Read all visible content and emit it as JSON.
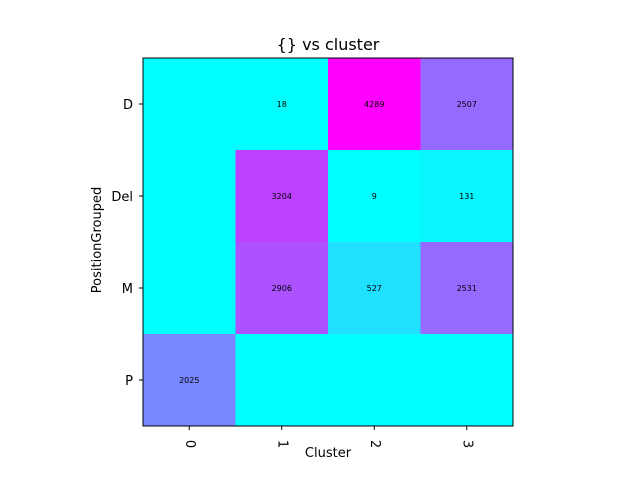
{
  "chart_data": {
    "type": "heatmap",
    "title": "{} vs cluster",
    "xlabel": "Cluster",
    "ylabel": "PositionGrouped",
    "x_categories": [
      "0",
      "1",
      "2",
      "3"
    ],
    "y_categories": [
      "D",
      "Del",
      "M",
      "P"
    ],
    "values": [
      [
        null,
        18,
        4289,
        2507
      ],
      [
        null,
        3204,
        9,
        131
      ],
      [
        null,
        2906,
        527,
        2531
      ],
      [
        2025,
        null,
        null,
        null
      ]
    ],
    "colormap": "cool",
    "colors": {
      "empty": "#00ffff",
      "low": "#00ffff",
      "high": "#ff00ff"
    },
    "value_range": [
      0,
      4289
    ]
  }
}
